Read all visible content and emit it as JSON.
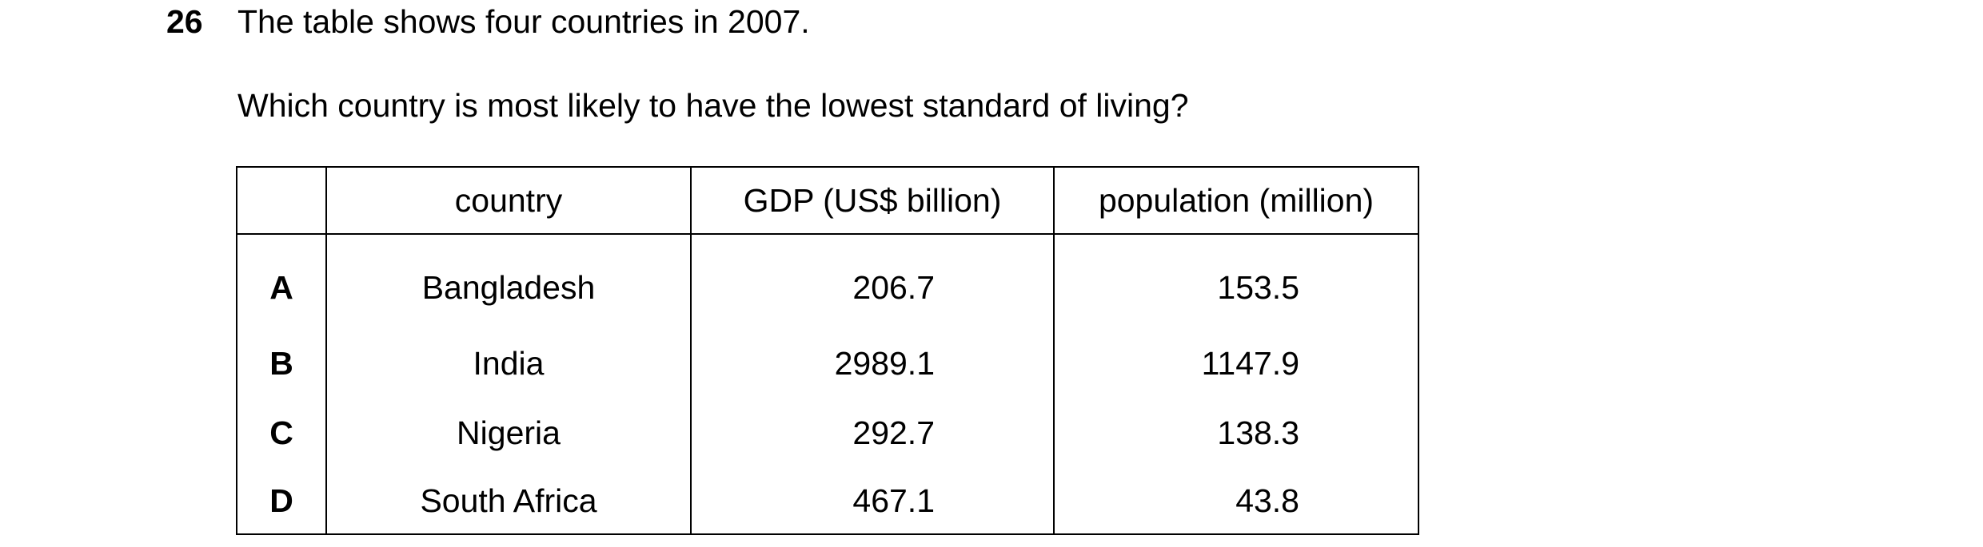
{
  "question": {
    "number": "26",
    "stem": "The table shows four countries in 2007.",
    "prompt": "Which country is most likely to have the lowest standard of living?"
  },
  "table": {
    "headers": [
      "",
      "country",
      "GDP (US$ billion)",
      "population (million)"
    ],
    "rows": [
      {
        "key": "A",
        "country": "Bangladesh",
        "gdp": "206.7",
        "population": "153.5"
      },
      {
        "key": "B",
        "country": "India",
        "gdp": "2989.1",
        "population": "1147.9"
      },
      {
        "key": "C",
        "country": "Nigeria",
        "gdp": "292.7",
        "population": "138.3"
      },
      {
        "key": "D",
        "country": "South Africa",
        "gdp": "467.1",
        "population": "43.8"
      }
    ]
  }
}
